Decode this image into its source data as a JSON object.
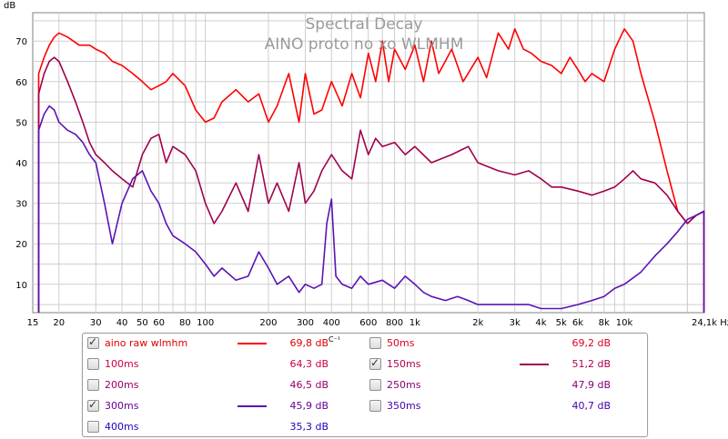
{
  "chart_data": {
    "type": "line",
    "title": "Spectral Decay",
    "subtitle": "AINO proto no xo WLMHM",
    "ylabel": "dB",
    "xlabel": "Hz",
    "x_scale": "log",
    "xlim": [
      15,
      24100
    ],
    "ylim": [
      3,
      77
    ],
    "x_ticks": [
      15,
      20,
      30,
      40,
      50,
      60,
      80,
      100,
      200,
      300,
      400,
      600,
      800,
      1000,
      2000,
      3000,
      4000,
      5000,
      6000,
      8000,
      10000,
      24100
    ],
    "x_tick_labels": [
      "15",
      "20",
      "30",
      "40",
      "50",
      "60",
      "80",
      "100",
      "200",
      "300",
      "400",
      "600",
      "800",
      "1k",
      "2k",
      "3k",
      "4k",
      "5k",
      "6k",
      "8k",
      "10k",
      "24,1k Hz"
    ],
    "y_ticks": [
      10,
      20,
      30,
      40,
      50,
      60,
      70
    ],
    "y_tick_labels": [
      "10",
      "20",
      "30",
      "40",
      "50",
      "60",
      "70"
    ],
    "grid": true,
    "legend_position": "bottom",
    "series": [
      {
        "name": "aino raw wlmhm",
        "color": "#ff0000",
        "visible": true,
        "x": [
          16,
          17,
          18,
          19,
          20,
          22,
          25,
          28,
          30,
          33,
          36,
          40,
          45,
          50,
          55,
          60,
          65,
          70,
          80,
          90,
          100,
          110,
          120,
          140,
          160,
          180,
          200,
          220,
          250,
          280,
          300,
          330,
          360,
          400,
          450,
          500,
          550,
          600,
          650,
          700,
          750,
          800,
          900,
          1000,
          1100,
          1200,
          1300,
          1500,
          1700,
          2000,
          2200,
          2500,
          2800,
          3000,
          3300,
          3600,
          4000,
          4500,
          5000,
          5500,
          6000,
          6500,
          7000,
          8000,
          9000,
          10000,
          11000,
          12000,
          14000,
          16000,
          18000,
          20000,
          22000,
          24000
        ],
        "y": [
          62,
          66,
          69,
          71,
          72,
          71,
          69,
          69,
          68,
          67,
          65,
          64,
          62,
          60,
          58,
          59,
          60,
          62,
          59,
          53,
          50,
          51,
          55,
          58,
          55,
          57,
          50,
          54,
          62,
          50,
          62,
          52,
          53,
          60,
          54,
          62,
          56,
          67,
          60,
          70,
          60,
          68,
          63,
          69,
          60,
          70,
          62,
          68,
          60,
          66,
          61,
          72,
          68,
          73,
          68,
          67,
          65,
          64,
          62,
          66,
          63,
          60,
          62,
          60,
          68,
          73,
          70,
          62,
          50,
          38,
          28,
          25,
          27,
          28
        ]
      },
      {
        "name": "50ms",
        "color": "#ec0033",
        "visible": false,
        "x": [],
        "y": []
      },
      {
        "name": "100ms",
        "color": "#d80066",
        "visible": false,
        "x": [],
        "y": []
      },
      {
        "name": "150ms",
        "color": "#a0004e",
        "visible": true,
        "x": [
          16,
          17,
          18,
          19,
          20,
          22,
          24,
          26,
          28,
          30,
          33,
          36,
          40,
          45,
          50,
          55,
          60,
          65,
          70,
          80,
          90,
          100,
          110,
          120,
          140,
          160,
          180,
          200,
          220,
          250,
          280,
          300,
          330,
          360,
          400,
          450,
          500,
          550,
          600,
          650,
          700,
          800,
          900,
          1000,
          1200,
          1500,
          1800,
          2000,
          2500,
          3000,
          3500,
          4000,
          4500,
          5000,
          6000,
          7000,
          8000,
          9000,
          10000,
          11000,
          12000,
          14000,
          16000,
          18000,
          20000,
          22000,
          24000
        ],
        "y": [
          57,
          62,
          65,
          66,
          65,
          60,
          55,
          50,
          45,
          42,
          40,
          38,
          36,
          34,
          42,
          46,
          47,
          40,
          44,
          42,
          38,
          30,
          25,
          28,
          35,
          28,
          42,
          30,
          35,
          28,
          40,
          30,
          33,
          38,
          42,
          38,
          36,
          48,
          42,
          46,
          44,
          45,
          42,
          44,
          40,
          42,
          44,
          40,
          38,
          37,
          38,
          36,
          34,
          34,
          33,
          32,
          33,
          34,
          36,
          38,
          36,
          35,
          32,
          28,
          25,
          27,
          28
        ]
      },
      {
        "name": "200ms",
        "color": "#8b0080",
        "visible": false,
        "x": [],
        "y": []
      },
      {
        "name": "250ms",
        "color": "#7a0099",
        "visible": false,
        "x": [],
        "y": []
      },
      {
        "name": "300ms",
        "color": "#5a14b4",
        "visible": true,
        "x": [
          16,
          17,
          18,
          19,
          20,
          22,
          24,
          26,
          28,
          30,
          33,
          36,
          40,
          45,
          50,
          55,
          60,
          65,
          70,
          80,
          90,
          100,
          110,
          120,
          140,
          160,
          180,
          200,
          220,
          250,
          280,
          300,
          330,
          360,
          380,
          400,
          420,
          450,
          500,
          550,
          600,
          700,
          800,
          900,
          1000,
          1100,
          1200,
          1400,
          1600,
          1800,
          2000,
          2500,
          3000,
          3500,
          4000,
          5000,
          6000,
          7000,
          8000,
          9000,
          10000,
          12000,
          14000,
          16000,
          18000,
          20000,
          22000,
          24000
        ],
        "y": [
          48,
          52,
          54,
          53,
          50,
          48,
          47,
          45,
          42,
          40,
          30,
          20,
          30,
          36,
          38,
          33,
          30,
          25,
          22,
          20,
          18,
          15,
          12,
          14,
          11,
          12,
          18,
          14,
          10,
          12,
          8,
          10,
          9,
          10,
          25,
          31,
          12,
          10,
          9,
          12,
          10,
          11,
          9,
          12,
          10,
          8,
          7,
          6,
          7,
          6,
          5,
          5,
          5,
          5,
          4,
          4,
          5,
          6,
          7,
          9,
          10,
          13,
          17,
          20,
          23,
          26,
          27,
          28
        ]
      },
      {
        "name": "350ms",
        "color": "#3c1ec8",
        "visible": false,
        "x": [],
        "y": []
      },
      {
        "name": "400ms",
        "color": "#281ed2",
        "visible": false,
        "x": [],
        "y": []
      }
    ]
  },
  "legend": {
    "items": [
      {
        "label": "aino raw wlmhm",
        "value": "69,8 dB",
        "checked": true,
        "color": "#dd0000",
        "line_color": "#ff0000"
      },
      {
        "label": "50ms",
        "value": "69,2 dB",
        "checked": false,
        "color": "#e00022",
        "line_color": ""
      },
      {
        "label": "100ms",
        "value": "64,3 dB",
        "checked": false,
        "color": "#cc0044",
        "line_color": ""
      },
      {
        "label": "150ms",
        "value": "51,2 dB",
        "checked": true,
        "color": "#b00055",
        "line_color": "#a0004e"
      },
      {
        "label": "200ms",
        "value": "46,5 dB",
        "checked": false,
        "color": "#990066",
        "line_color": ""
      },
      {
        "label": "250ms",
        "value": "47,9 dB",
        "checked": false,
        "color": "#880077",
        "line_color": ""
      },
      {
        "label": "300ms",
        "value": "45,9 dB",
        "checked": true,
        "color": "#660099",
        "line_color": "#5a14b4"
      },
      {
        "label": "350ms",
        "value": "40,7 dB",
        "checked": false,
        "color": "#4400aa",
        "line_color": ""
      },
      {
        "label": "400ms",
        "value": "35,3 dB",
        "checked": false,
        "color": "#2200bb",
        "line_color": ""
      }
    ],
    "cursor_label": "C⁻¹"
  },
  "colors": {
    "background": "#ffffff",
    "plot_area": "#ffffff",
    "grid": "#cfcfcf",
    "axis": "#808080",
    "title": "#9a9a9a"
  }
}
